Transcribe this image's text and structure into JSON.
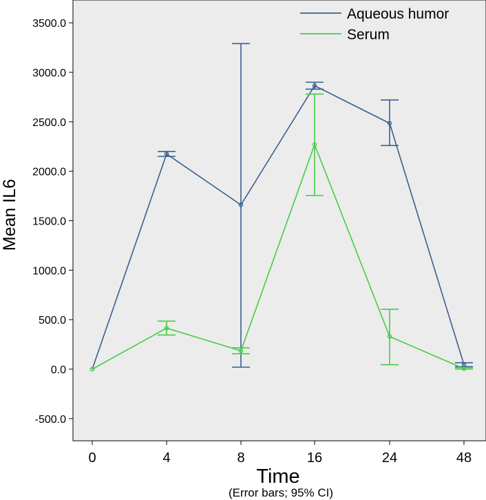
{
  "chart_data": {
    "type": "line",
    "ylabel": "Mean IL6",
    "xlabel": "Time",
    "note": "(Error bars; 95% CI)",
    "categories": [
      "0",
      "4",
      "8",
      "16",
      "24",
      "48"
    ],
    "ylim": [
      -750,
      3700
    ],
    "yticks": [
      "3500.0",
      "3000.0",
      "2500.0",
      "2000.0",
      "1500.0",
      "1000.0",
      "500.0",
      "0.0",
      "-500.0"
    ],
    "ytick_values": [
      3500,
      3000,
      2500,
      2000,
      1500,
      1000,
      500,
      0,
      -500
    ],
    "grid": false,
    "legend_position": "top-right",
    "series": [
      {
        "name": "Aqueous humor",
        "color": "#3a5f8f",
        "values": [
          0,
          2175,
          1660,
          2865,
          2485,
          45
        ],
        "ci_low": [
          0,
          2150,
          20,
          2830,
          2260,
          25
        ],
        "ci_high": [
          0,
          2200,
          3290,
          2900,
          2720,
          65
        ]
      },
      {
        "name": "Serum",
        "color": "#44cc44",
        "values": [
          0,
          415,
          185,
          2270,
          330,
          5
        ],
        "ci_low": [
          0,
          345,
          155,
          1755,
          45,
          0
        ],
        "ci_high": [
          0,
          485,
          215,
          2780,
          605,
          15
        ]
      }
    ]
  }
}
